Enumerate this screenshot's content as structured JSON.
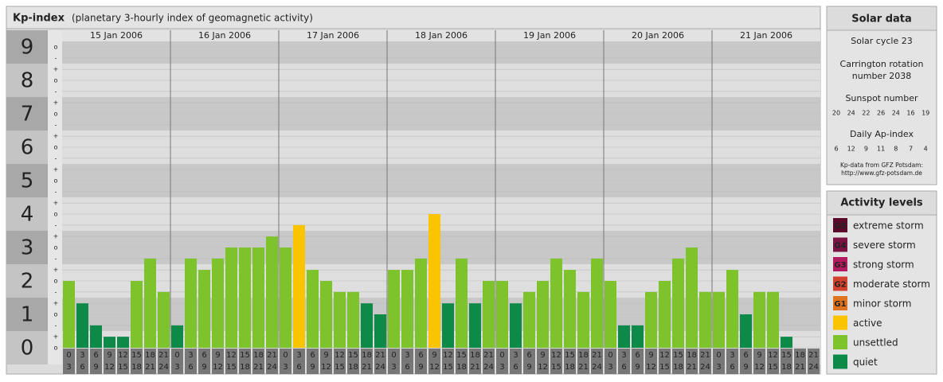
{
  "chart_data": {
    "type": "bar",
    "title": "Kp-index",
    "subtitle": "(planetary 3-hourly index of geomagnetic activity)",
    "ylim": [
      -0.5,
      9.5
    ],
    "yticks": [
      0,
      1,
      2,
      3,
      4,
      5,
      6,
      7,
      8,
      9
    ],
    "minor_ticks": [
      {
        "value": 0,
        "label": "o"
      },
      {
        "value": 0.33,
        "label": "+"
      },
      {
        "value": 0.67,
        "label": "-"
      },
      {
        "value": 1,
        "label": "o"
      },
      {
        "value": 1.33,
        "label": "+"
      },
      {
        "value": 1.67,
        "label": "-"
      },
      {
        "value": 2,
        "label": "o"
      },
      {
        "value": 2.33,
        "label": "+"
      },
      {
        "value": 2.67,
        "label": "-"
      },
      {
        "value": 3,
        "label": "o"
      },
      {
        "value": 3.33,
        "label": "+"
      },
      {
        "value": 3.67,
        "label": "-"
      },
      {
        "value": 4,
        "label": "o"
      },
      {
        "value": 4.33,
        "label": "+"
      },
      {
        "value": 4.67,
        "label": "-"
      },
      {
        "value": 5,
        "label": "o"
      },
      {
        "value": 5.33,
        "label": "+"
      },
      {
        "value": 5.67,
        "label": "-"
      },
      {
        "value": 6,
        "label": "o"
      },
      {
        "value": 6.33,
        "label": "+"
      },
      {
        "value": 6.67,
        "label": "-"
      },
      {
        "value": 7,
        "label": "o"
      },
      {
        "value": 7.33,
        "label": "+"
      },
      {
        "value": 7.67,
        "label": "-"
      },
      {
        "value": 8,
        "label": "o"
      },
      {
        "value": 8.33,
        "label": "+"
      },
      {
        "value": 8.67,
        "label": "-"
      },
      {
        "value": 9,
        "label": "o"
      }
    ],
    "hours": [
      "0",
      "3",
      "6",
      "9",
      "12",
      "15",
      "18",
      "21",
      "24"
    ],
    "days": [
      {
        "date": "15 Jan 2006",
        "values": [
          2,
          1.33,
          0.67,
          0.33,
          0.33,
          2,
          2.67,
          1.67
        ],
        "colors": [
          "#7dc32b",
          "#0e8a48",
          "#0e8a48",
          "#0e8a48",
          "#0e8a48",
          "#7dc32b",
          "#7dc32b",
          "#7dc32b"
        ]
      },
      {
        "date": "16 Jan 2006",
        "values": [
          0.67,
          2.67,
          2.33,
          2.67,
          3,
          3,
          3,
          3.33
        ],
        "colors": [
          "#0e8a48",
          "#7dc32b",
          "#7dc32b",
          "#7dc32b",
          "#7dc32b",
          "#7dc32b",
          "#7dc32b",
          "#7dc32b"
        ]
      },
      {
        "date": "17 Jan 2006",
        "values": [
          3,
          3.67,
          2.33,
          2,
          1.67,
          1.67,
          1.33,
          1
        ],
        "colors": [
          "#7dc32b",
          "#fbc400",
          "#7dc32b",
          "#7dc32b",
          "#7dc32b",
          "#7dc32b",
          "#0e8a48",
          "#0e8a48"
        ]
      },
      {
        "date": "18 Jan 2006",
        "values": [
          2.33,
          2.33,
          2.67,
          4,
          1.33,
          2.67,
          1.33,
          2
        ],
        "colors": [
          "#7dc32b",
          "#7dc32b",
          "#7dc32b",
          "#fbc400",
          "#0e8a48",
          "#7dc32b",
          "#0e8a48",
          "#7dc32b"
        ]
      },
      {
        "date": "19 Jan 2006",
        "values": [
          2,
          1.33,
          1.67,
          2,
          2.67,
          2.33,
          1.67,
          2.67
        ],
        "colors": [
          "#7dc32b",
          "#0e8a48",
          "#7dc32b",
          "#7dc32b",
          "#7dc32b",
          "#7dc32b",
          "#7dc32b",
          "#7dc32b"
        ]
      },
      {
        "date": "20 Jan 2006",
        "values": [
          2,
          0.67,
          0.67,
          1.67,
          2,
          2.67,
          3,
          1.67
        ],
        "colors": [
          "#7dc32b",
          "#0e8a48",
          "#0e8a48",
          "#7dc32b",
          "#7dc32b",
          "#7dc32b",
          "#7dc32b",
          "#7dc32b"
        ]
      },
      {
        "date": "21 Jan 2006",
        "values": [
          1.67,
          2.33,
          1,
          1.67,
          1.67,
          0.33,
          0,
          0
        ],
        "colors": [
          "#7dc32b",
          "#7dc32b",
          "#0e8a48",
          "#7dc32b",
          "#7dc32b",
          "#0e8a48",
          "#0e8a48",
          "#0e8a48"
        ]
      }
    ]
  },
  "solar": {
    "title": "Solar data",
    "cycle": "Solar cycle 23",
    "carrington": [
      "Carrington rotation",
      "number 2038"
    ],
    "sunspot_label": "Sunspot number",
    "sunspots": [
      20,
      24,
      22,
      26,
      24,
      16,
      19
    ],
    "ap_label": "Daily Ap-index",
    "ap": [
      6,
      12,
      9,
      11,
      8,
      7,
      4
    ],
    "source": [
      "Kp-data from GFZ Potsdam:",
      "http://www.gfz-potsdam.de"
    ]
  },
  "activity": {
    "title": "Activity levels",
    "levels": [
      {
        "code": "G5",
        "name": "extreme storm",
        "color": "#5c0a2c"
      },
      {
        "code": "G4",
        "name": "severe storm",
        "color": "#7a1244"
      },
      {
        "code": "G3",
        "name": "strong storm",
        "color": "#b3195e"
      },
      {
        "code": "G2",
        "name": "moderate storm",
        "color": "#d2412c"
      },
      {
        "code": "G1",
        "name": "minor storm",
        "color": "#e0741e"
      },
      {
        "name": "active",
        "color": "#fbc400"
      },
      {
        "name": "unsettled",
        "color": "#7dc32b"
      },
      {
        "name": "quiet",
        "color": "#0e8a48"
      }
    ]
  }
}
